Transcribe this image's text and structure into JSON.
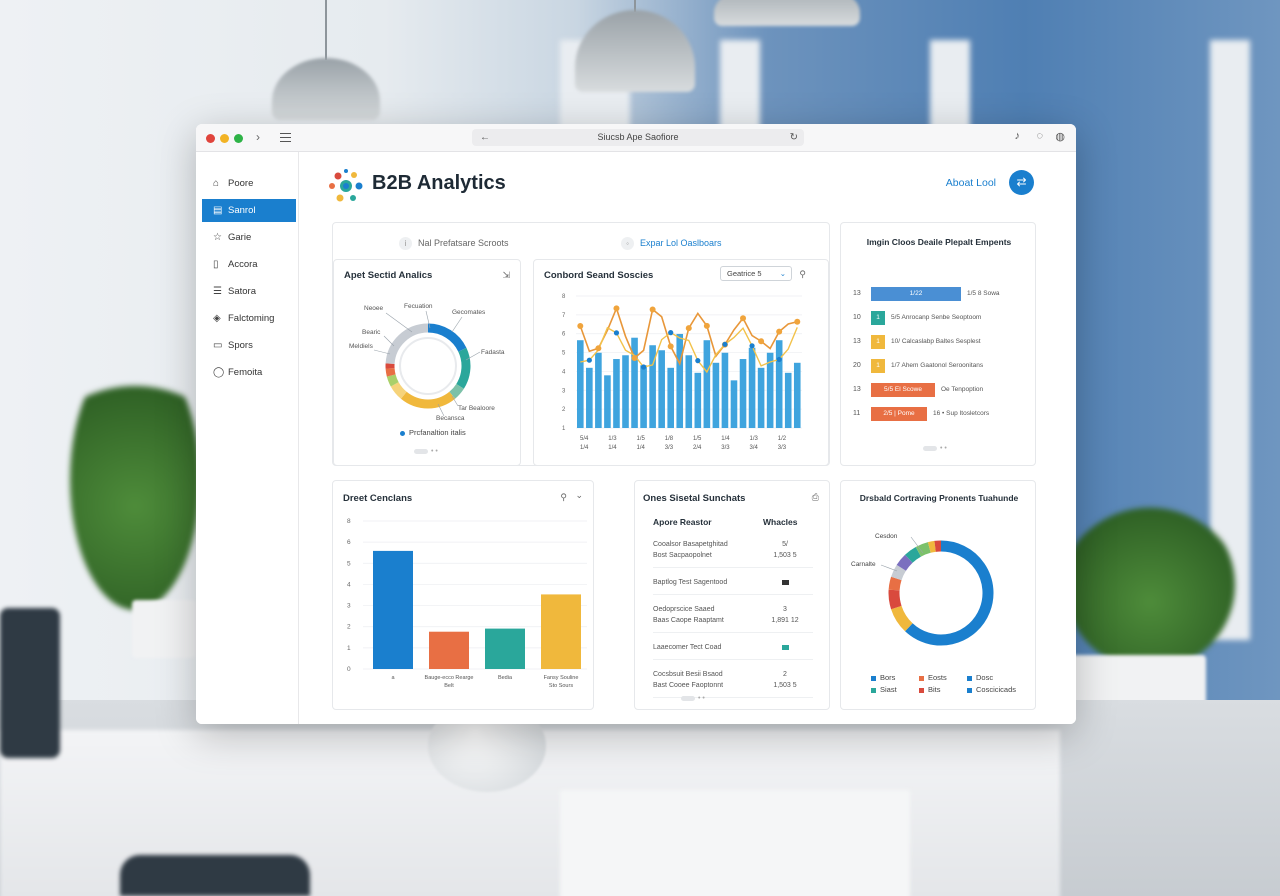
{
  "browser": {
    "url": "Siucsb Ape Saofiore",
    "colors": {
      "close": "#e0443c",
      "min": "#f2b324",
      "max": "#2eb347"
    }
  },
  "sidebar": {
    "items": [
      {
        "label": "Poore",
        "icon": "home-icon"
      },
      {
        "label": "Sanrol",
        "icon": "grid-icon",
        "active": true
      },
      {
        "label": "Garie",
        "icon": "star-icon"
      },
      {
        "label": "Accora",
        "icon": "clipboard-icon"
      },
      {
        "label": "Satora",
        "icon": "list-icon"
      },
      {
        "label": "Falctoming",
        "icon": "tag-icon"
      },
      {
        "label": "Spors",
        "icon": "window-icon"
      },
      {
        "label": "Femoita",
        "icon": "circle-icon"
      }
    ]
  },
  "header": {
    "title": "B2B Analytics",
    "about_label": "Aboat Lool"
  },
  "top_panel": {
    "tabs": [
      {
        "label": "Nal Prefatsare Scroots",
        "active": false
      },
      {
        "label": "Expar Lol Oaslboars",
        "active": true
      }
    ]
  },
  "donut_card": {
    "title": "Apet Sectid Analics",
    "labels": [
      "Neoee",
      "Fecuation",
      "Gecomates",
      "Bearic",
      "Meldiels",
      "Fadasta",
      "Tar Bealoore",
      "Becansca"
    ],
    "legend": "Prcfanaltion italis"
  },
  "combo_card": {
    "title": "Conbord Seand Soscies",
    "dropdown": "Geatrice 5",
    "y_ticks": [
      "8",
      "7",
      "6",
      "5",
      "4",
      "3",
      "2",
      "1"
    ],
    "x_ticks": [
      [
        "5/4",
        "1/4"
      ],
      [
        "1/3",
        "1/4"
      ],
      [
        "1/5",
        "1/4"
      ],
      [
        "1/8",
        "3/3"
      ],
      [
        "1/5",
        "2/4"
      ],
      [
        "1/4",
        "3/3"
      ],
      [
        "1/3",
        "3/4"
      ],
      [
        "1/2",
        "3/3"
      ]
    ]
  },
  "bars_list_card": {
    "title": "Imgin Cloos Deaile Plepalt Empents",
    "rows": [
      {
        "num": "13",
        "bar_label": "1/22",
        "text": "1/5 8 Sowa",
        "color": "#4a8fd4",
        "bar_w": 90
      },
      {
        "num": "10",
        "bar_label": "1",
        "text": "5/5 Anrocanp Senbe Seoptoom",
        "color": "#2aa79b",
        "bar_w": 14
      },
      {
        "num": "13",
        "bar_label": "1",
        "text": "10/ Calcaslabp Baltes Sesplest",
        "color": "#f0b83c",
        "bar_w": 14
      },
      {
        "num": "20",
        "bar_label": "1",
        "text": "1/7 Ahem Gaatonol Seroonitans",
        "color": "#f0b83c",
        "bar_w": 14
      },
      {
        "num": "13",
        "bar_label": "5/5 El Scowe",
        "text": "Oe Tenpoption",
        "color": "#e86f44",
        "bar_w": 64
      },
      {
        "num": "11",
        "bar_label": "2/5 | Pome",
        "text": "16 • Sup Itosletcors",
        "color": "#e86f44",
        "bar_w": 56
      }
    ]
  },
  "bar_card": {
    "title": "Dreet Cenclans",
    "y_ticks": [
      "8",
      "6",
      "5",
      "4",
      "3",
      "2",
      "1",
      "0"
    ],
    "categories": [
      "a",
      "Bauge-ecco Rearge Belt",
      "Bedia",
      "Fansy Souline Sto Sours"
    ],
    "values": [
      7.6,
      2.4,
      2.6,
      4.8
    ],
    "colors": [
      "#1a7fce",
      "#e86f44",
      "#2aa79b",
      "#f0b83c"
    ],
    "ylim": [
      0,
      10
    ]
  },
  "table_card": {
    "title": "Ones Sisetal Sunchats",
    "col1": "Apore Reastor",
    "col2": "Whacles",
    "rows": [
      {
        "lines": [
          "Cooalsor Basapetghitad",
          "Bost Sacpaopolnet"
        ],
        "vals": [
          "5/",
          "1,503 5"
        ],
        "badge": false
      },
      {
        "lines": [
          "Baptlog Test Sagentood"
        ],
        "vals": [],
        "badge": "#333333"
      },
      {
        "lines": [
          "Oedoprscice Saaed",
          "Baas Caope Raaptamt"
        ],
        "vals": [
          "3",
          "1,891 12"
        ],
        "badge": false
      },
      {
        "lines": [
          "Laaecomer Tect Coad"
        ],
        "vals": [],
        "badge": "#2aa79b"
      },
      {
        "lines": [
          "Cocsbsuit Besii Bsaod",
          "Bast Cooee Faoptonnt"
        ],
        "vals": [
          "2",
          "1,503 5"
        ],
        "badge": false
      }
    ]
  },
  "ring_card": {
    "title": "Drsbald Cortraving Pronents Tuahunde",
    "callouts": [
      "Cesdon",
      "Carnalte"
    ],
    "legend": [
      {
        "label": "Bors",
        "color": "#1a7fce"
      },
      {
        "label": "Eosts",
        "color": "#e86f44"
      },
      {
        "label": "Dosc",
        "color": "#1a7fce"
      },
      {
        "label": "Siast",
        "color": "#2aa79b"
      },
      {
        "label": "Bits",
        "color": "#d94a3d"
      },
      {
        "label": "Coscicicads",
        "color": "#1a7fce"
      }
    ]
  }
}
